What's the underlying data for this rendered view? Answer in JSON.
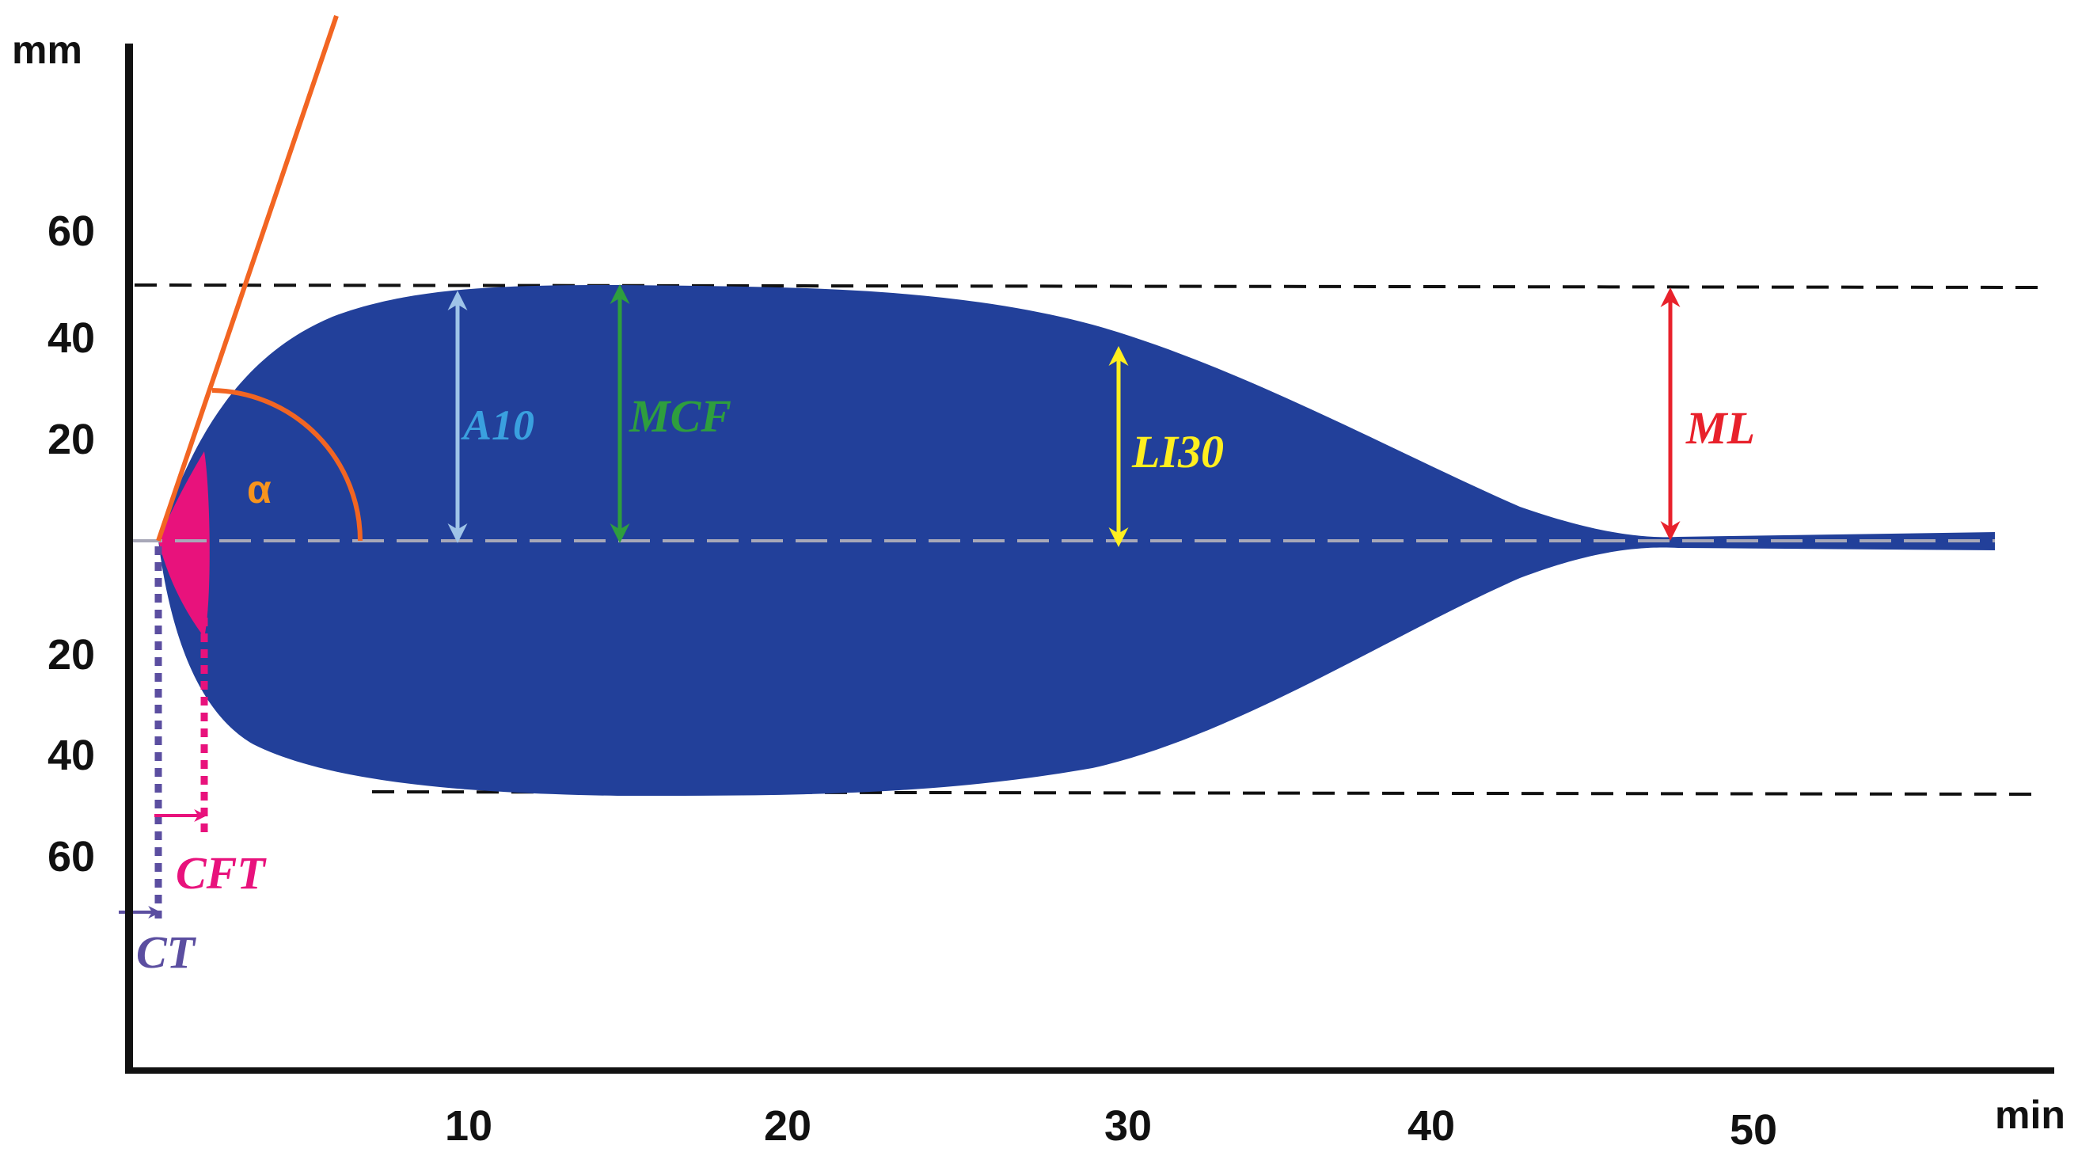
{
  "figure": {
    "y_unit": "mm",
    "x_unit": "min",
    "y_ticks_upper": [
      "60",
      "40",
      "20"
    ],
    "y_ticks_lower": [
      "20",
      "40",
      "60"
    ],
    "x_ticks": [
      "10",
      "20",
      "30",
      "40",
      "50"
    ],
    "angle_symbol": "α"
  },
  "parameters": {
    "a10": "A10",
    "mcf": "MCF",
    "li30": "LI30",
    "ml": "ML",
    "cft": "CFT",
    "ct": "CT"
  },
  "colors": {
    "trace_fill": "#22409A",
    "clot_initiation": "#E8127C",
    "angle_line": "#F26522",
    "angle_symbol": "#F7941D",
    "a10": "#9FC4E8",
    "a10_text": "#3AA0DF",
    "mcf": "#2E9E3E",
    "li30": "#FFEF1F",
    "ml": "#E8212B",
    "ct": "#5B4EA0",
    "baseline": "#A8A8B8",
    "axis": "#111111"
  }
}
